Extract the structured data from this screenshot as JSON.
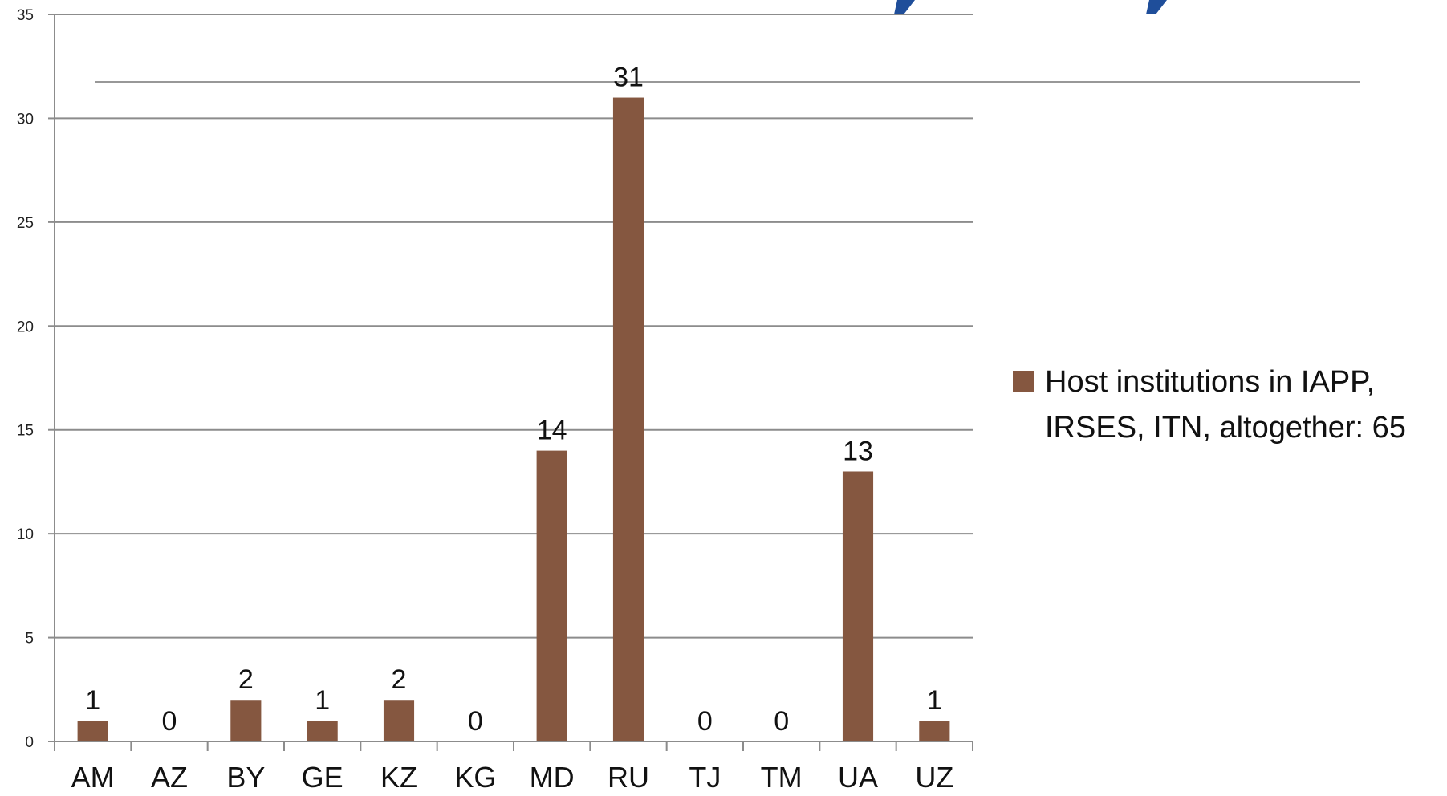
{
  "chart_data": {
    "type": "bar",
    "categories": [
      "AM",
      "AZ",
      "BY",
      "GE",
      "KZ",
      "KG",
      "MD",
      "RU",
      "TJ",
      "TM",
      "UA",
      "UZ"
    ],
    "series": [
      {
        "name": "Host institutions in  IAPP, IRSES, ITN, altogether: 65",
        "values": [
          1,
          0,
          2,
          1,
          2,
          0,
          14,
          31,
          0,
          0,
          13,
          1
        ],
        "color": "#855740"
      }
    ],
    "y_ticks": [
      "0",
      "5",
      "10",
      "15",
      "20",
      "25",
      "30",
      "35"
    ],
    "ylim": [
      0,
      35
    ],
    "grid": true,
    "legend": {
      "placement": "right",
      "lines": [
        "Host institutions in  IAPP,",
        "IRSES, ITN, altogether: 65"
      ]
    },
    "colors": {
      "grid": "#8c8c8c",
      "axis": "#8c8c8c",
      "title_fragment": "#1f4e9a"
    }
  }
}
